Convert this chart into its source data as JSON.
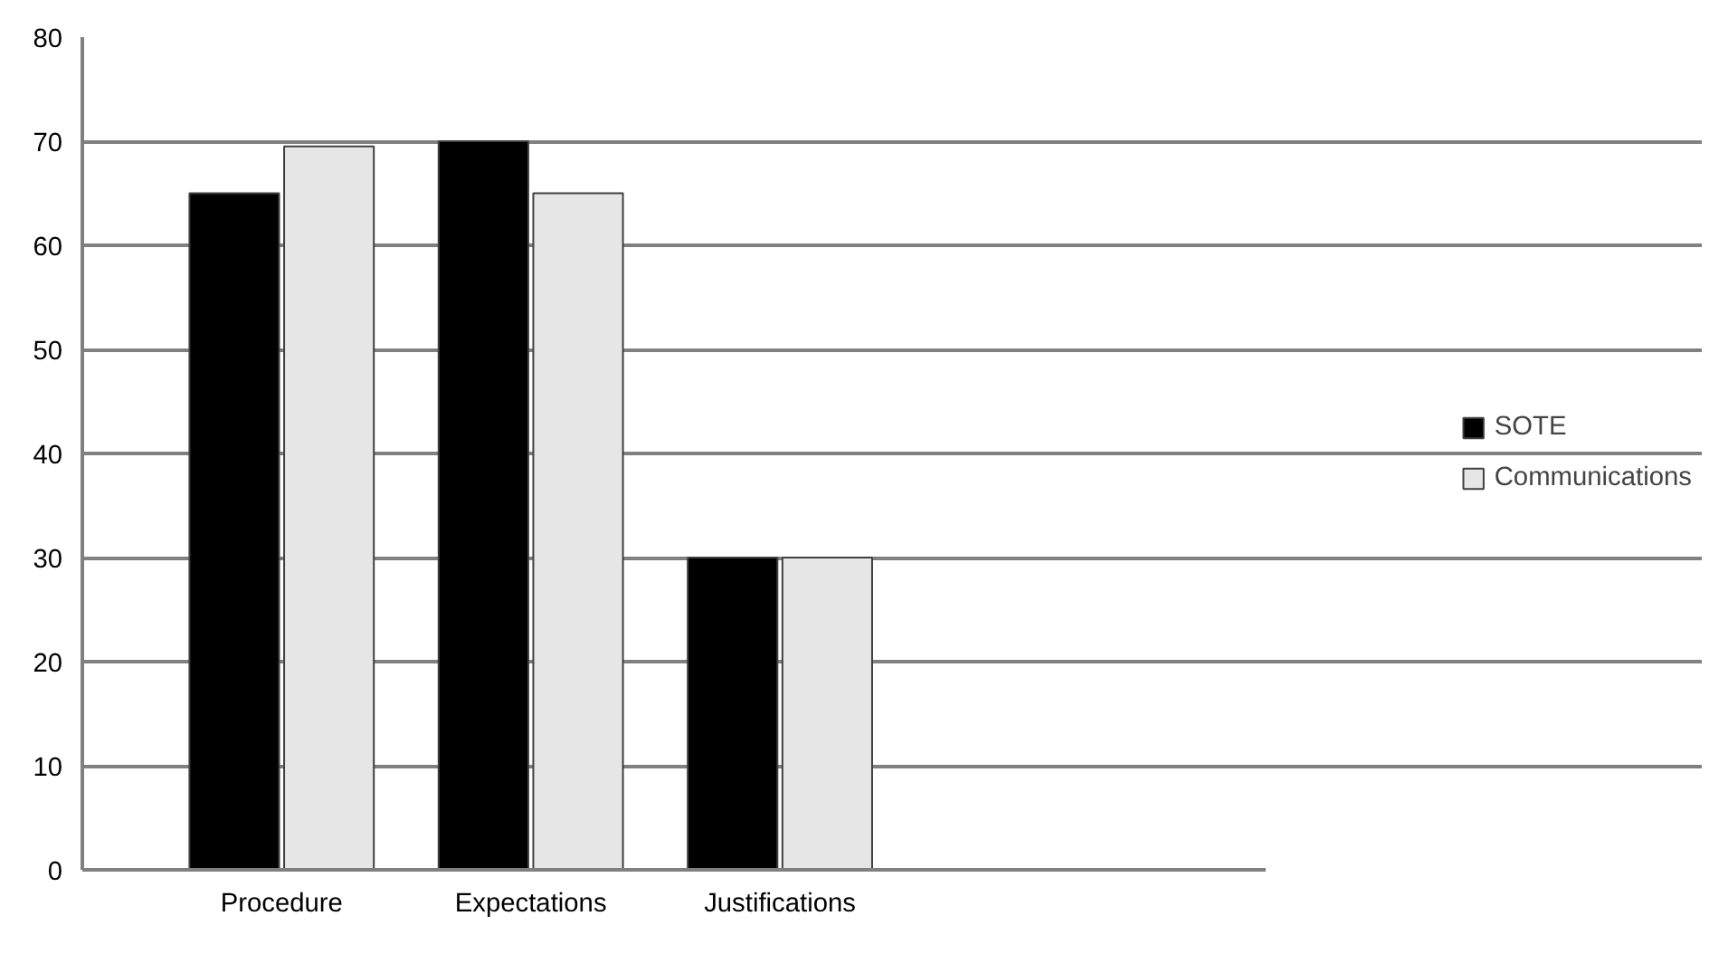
{
  "chart_data": {
    "type": "bar",
    "categories": [
      "Procedure",
      "Expectations",
      "Justifications"
    ],
    "series": [
      {
        "name": "SOTE",
        "color": "#000000",
        "values": [
          65,
          70,
          30
        ]
      },
      {
        "name": "Communications",
        "color": "#e6e6e6",
        "values": [
          69.5,
          65,
          30
        ]
      }
    ],
    "ylim": [
      0,
      80
    ],
    "yticks": [
      0,
      10,
      20,
      30,
      40,
      50,
      60,
      70,
      80
    ],
    "grid": "y",
    "legend": "right"
  }
}
